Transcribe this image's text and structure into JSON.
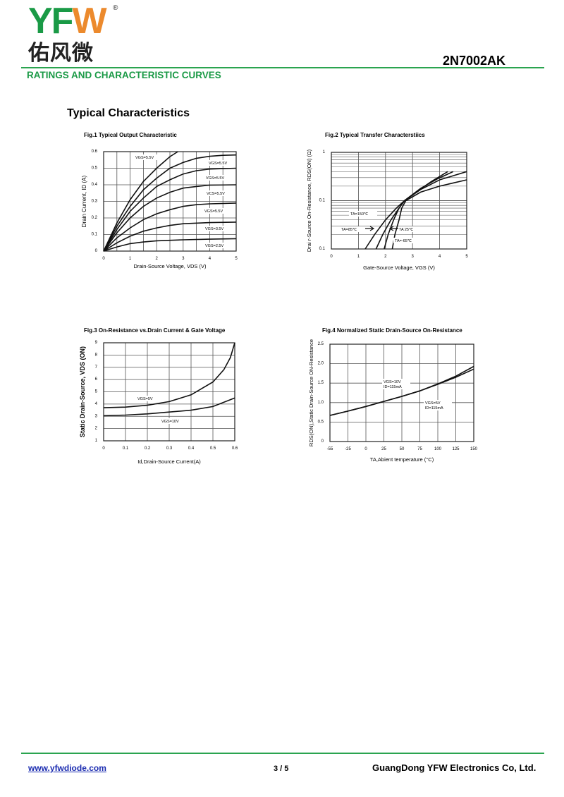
{
  "header": {
    "logo_text": "YFW",
    "logo_cn": "佑风微",
    "registered": "®",
    "part_number": "2N7002AK",
    "section_title": "RATINGS AND CHARACTERISTIC CURVES",
    "page_heading": "Typical Characteristics"
  },
  "colors": {
    "brand_green": "#1a9a46",
    "brand_orange": "#ec8a2d",
    "link": "#1a2bb0"
  },
  "footer": {
    "url": "www.yfwdiode.com",
    "page": "3 / 5",
    "company": "GuangDong YFW Electronics Co, Ltd."
  },
  "chart_data": [
    {
      "type": "line",
      "title": "Fig.1  Typical Output Characteristic",
      "xlabel": "Drain-Source Voltage, VDS (V)",
      "ylabel": "Drain Current, ID (A)",
      "xlim": [
        0,
        5
      ],
      "ylim": [
        0,
        0.6
      ],
      "xticks": [
        "0",
        "1",
        "2",
        "3",
        "4",
        "5"
      ],
      "yticks": [
        "0",
        "0.1",
        "0.2",
        "0.3",
        "0.4",
        "0.5",
        "0.6"
      ],
      "grid": true,
      "yscale": "linear",
      "series": [
        {
          "label": "VGS=5.5V",
          "points": [
            [
              0,
              0
            ],
            [
              0.5,
              0.17
            ],
            [
              1,
              0.31
            ],
            [
              1.5,
              0.42
            ],
            [
              2,
              0.5
            ],
            [
              2.5,
              0.57
            ],
            [
              2.8,
              0.6
            ]
          ]
        },
        {
          "label": "VGS=5.5V",
          "points": [
            [
              0,
              0
            ],
            [
              0.5,
              0.15
            ],
            [
              1,
              0.27
            ],
            [
              1.5,
              0.37
            ],
            [
              2,
              0.44
            ],
            [
              2.5,
              0.5
            ],
            [
              3,
              0.535
            ],
            [
              3.5,
              0.56
            ],
            [
              4,
              0.572
            ],
            [
              4.5,
              0.578
            ],
            [
              5,
              0.58
            ]
          ]
        },
        {
          "label": "VGS=5.5V",
          "points": [
            [
              0,
              0
            ],
            [
              0.5,
              0.13
            ],
            [
              1,
              0.24
            ],
            [
              1.5,
              0.32
            ],
            [
              2,
              0.39
            ],
            [
              2.5,
              0.43
            ],
            [
              3,
              0.465
            ],
            [
              3.5,
              0.485
            ],
            [
              4,
              0.495
            ],
            [
              5,
              0.5
            ]
          ]
        },
        {
          "label": "VCS=5.5V",
          "points": [
            [
              0,
              0
            ],
            [
              0.5,
              0.11
            ],
            [
              1,
              0.2
            ],
            [
              1.5,
              0.27
            ],
            [
              2,
              0.32
            ],
            [
              2.5,
              0.355
            ],
            [
              3,
              0.38
            ],
            [
              3.5,
              0.39
            ],
            [
              4,
              0.398
            ],
            [
              5,
              0.4
            ]
          ]
        },
        {
          "label": "VGS=5.5V",
          "points": [
            [
              0,
              0
            ],
            [
              0.5,
              0.08
            ],
            [
              1,
              0.14
            ],
            [
              1.5,
              0.19
            ],
            [
              2,
              0.225
            ],
            [
              2.5,
              0.25
            ],
            [
              3,
              0.27
            ],
            [
              3.5,
              0.28
            ],
            [
              4,
              0.285
            ],
            [
              5,
              0.29
            ]
          ]
        },
        {
          "label": "VGS=3.5V",
          "points": [
            [
              0,
              0
            ],
            [
              0.5,
              0.05
            ],
            [
              1,
              0.09
            ],
            [
              1.5,
              0.12
            ],
            [
              2,
              0.14
            ],
            [
              2.5,
              0.155
            ],
            [
              3,
              0.165
            ],
            [
              4,
              0.172
            ],
            [
              5,
              0.175
            ]
          ]
        },
        {
          "label": "VGS=2.5V",
          "points": [
            [
              0,
              0
            ],
            [
              0.5,
              0.025
            ],
            [
              1,
              0.045
            ],
            [
              1.5,
              0.055
            ],
            [
              2,
              0.062
            ],
            [
              3,
              0.068
            ],
            [
              4,
              0.072
            ],
            [
              5,
              0.075
            ]
          ]
        }
      ]
    },
    {
      "type": "line",
      "title": "Fig.2  Typical Transfer Characterstiics",
      "xlabel": "Gate-Source Voltage, VGS (V)",
      "ylabel": "Drai r-Source On-Resistance, RDS(ON) (Ω)",
      "xlim": [
        0,
        5
      ],
      "ylim": [
        0.01,
        1
      ],
      "xticks": [
        "0",
        "1",
        "2",
        "3",
        "4",
        "5"
      ],
      "yticks": [
        "0.1",
        "0.1",
        "1"
      ],
      "grid": true,
      "yscale": "log",
      "series": [
        {
          "label": "TA=150℃",
          "points": [
            [
              1.25,
              0.01
            ],
            [
              1.6,
              0.02
            ],
            [
              2,
              0.04
            ],
            [
              2.4,
              0.07
            ],
            [
              2.7,
              0.1
            ],
            [
              3.2,
              0.16
            ],
            [
              3.7,
              0.25
            ],
            [
              4.3,
              0.4
            ]
          ]
        },
        {
          "label": "TA=85℃",
          "points": [
            [
              1.65,
              0.01
            ],
            [
              1.9,
              0.02
            ],
            [
              2.2,
              0.04
            ],
            [
              2.5,
              0.07
            ],
            [
              2.7,
              0.1
            ],
            [
              3.3,
              0.18
            ],
            [
              3.9,
              0.28
            ],
            [
              4.5,
              0.4
            ]
          ]
        },
        {
          "label": "TA 25℃",
          "points": [
            [
              1.95,
              0.01
            ],
            [
              2.1,
              0.02
            ],
            [
              2.3,
              0.04
            ],
            [
              2.5,
              0.07
            ],
            [
              2.7,
              0.1
            ],
            [
              3.3,
              0.17
            ],
            [
              4,
              0.27
            ],
            [
              5,
              0.4
            ]
          ]
        },
        {
          "label": "TA=-65℃",
          "points": [
            [
              2.25,
              0.01
            ],
            [
              2.35,
              0.02
            ],
            [
              2.5,
              0.04
            ],
            [
              2.6,
              0.07
            ],
            [
              2.75,
              0.1
            ],
            [
              3.3,
              0.15
            ],
            [
              4,
              0.2
            ],
            [
              5,
              0.27
            ]
          ]
        }
      ]
    },
    {
      "type": "line",
      "title": "Fig.3  On-Resistance vs.Drain Current & Gate Voltage",
      "xlabel": "Id,Drain-Source Current(A)",
      "ylabel": "Static Drain-Source, VDS (ON)",
      "xlim": [
        0,
        0.6
      ],
      "ylim": [
        1,
        9
      ],
      "xticks": [
        "0",
        "0.1",
        "0.2",
        "0.3",
        "0.4",
        "0.5",
        "0.6"
      ],
      "yticks": [
        "1",
        "2",
        "3",
        "4",
        "5",
        "6",
        "7",
        "8",
        "9"
      ],
      "grid": true,
      "yscale": "linear",
      "series": [
        {
          "label": "VGS=5V",
          "points": [
            [
              0,
              3.7
            ],
            [
              0.1,
              3.75
            ],
            [
              0.2,
              3.9
            ],
            [
              0.3,
              4.2
            ],
            [
              0.4,
              4.75
            ],
            [
              0.5,
              5.8
            ],
            [
              0.55,
              6.8
            ],
            [
              0.58,
              7.8
            ],
            [
              0.6,
              9
            ]
          ]
        },
        {
          "label": "VGS=10V",
          "points": [
            [
              0,
              3.05
            ],
            [
              0.1,
              3.1
            ],
            [
              0.2,
              3.2
            ],
            [
              0.3,
              3.35
            ],
            [
              0.4,
              3.5
            ],
            [
              0.5,
              3.8
            ],
            [
              0.6,
              4.5
            ]
          ]
        }
      ]
    },
    {
      "type": "line",
      "title": "Fig.4   Normalized Static Drain-Source On-Resistance",
      "xlabel": "TA,Abient temperature (°C)",
      "ylabel": "RDS(ON),Static Drain-Source ON-Resistance",
      "xlim": [
        -55,
        150
      ],
      "ylim": [
        0,
        2.5
      ],
      "xticks": [
        "-55",
        "-25",
        "0",
        "25",
        "50",
        "75",
        "100",
        "125",
        "150"
      ],
      "yticks": [
        "0",
        "0.5",
        "1.0",
        "1.5",
        "2.0",
        "2.5"
      ],
      "grid": true,
      "yscale": "linear",
      "series": [
        {
          "label": "VGS=10V",
          "sublabel": "ID=115mA",
          "points": [
            [
              -55,
              0.67
            ],
            [
              -25,
              0.78
            ],
            [
              0,
              0.9
            ],
            [
              25,
              1.03
            ],
            [
              50,
              1.16
            ],
            [
              75,
              1.3
            ],
            [
              100,
              1.48
            ],
            [
              125,
              1.68
            ],
            [
              150,
              1.93
            ]
          ]
        },
        {
          "label": "VGS=5V",
          "sublabel": "ID=115mA",
          "points": [
            [
              -55,
              0.67
            ],
            [
              -25,
              0.78
            ],
            [
              0,
              0.9
            ],
            [
              25,
              1.03
            ],
            [
              50,
              1.16
            ],
            [
              75,
              1.3
            ],
            [
              100,
              1.47
            ],
            [
              125,
              1.65
            ],
            [
              150,
              1.86
            ]
          ]
        }
      ]
    }
  ]
}
